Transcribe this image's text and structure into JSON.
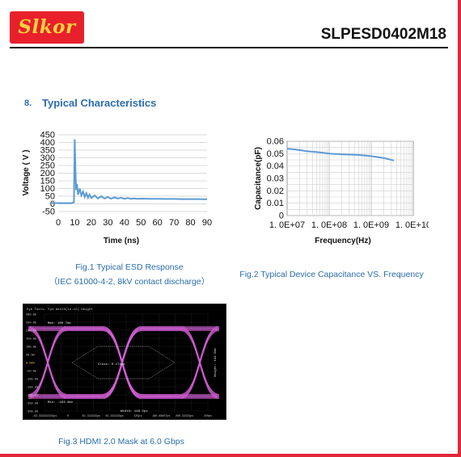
{
  "header": {
    "logo_text": "Slkor",
    "part_number": "SLPESD0402M18"
  },
  "section": {
    "number": "8.",
    "title": "Typical Characteristics"
  },
  "fig1": {
    "caption_line1": "Fig.1 Typical ESD Response",
    "caption_line2": "（IEC 61000-4-2, 8kV contact discharge）",
    "chart_data": {
      "type": "line",
      "xlabel": "Time (ns)",
      "ylabel": "Voltage ( V )",
      "xlim": [
        0,
        90
      ],
      "ylim": [
        -50,
        450
      ],
      "x_ticks": [
        "0",
        "10",
        "20",
        "30",
        "40",
        "50",
        "60",
        "70",
        "80",
        "90"
      ],
      "y_ticks": [
        "450",
        "400",
        "350",
        "300",
        "250",
        "200",
        "150",
        "100",
        "50",
        "0",
        "-50"
      ],
      "grid": true,
      "series": [
        {
          "color": "#5b9bd5",
          "x": [
            -5,
            8,
            9.5,
            10,
            10.3,
            10.8,
            11.3,
            12,
            13,
            14,
            15,
            16,
            17,
            18,
            19,
            20,
            22,
            24,
            26,
            28,
            30,
            32,
            34,
            36,
            38,
            40,
            42,
            44,
            46,
            48,
            50,
            55,
            60,
            65,
            70,
            75,
            80,
            85,
            90
          ],
          "y": [
            5,
            5,
            10,
            420,
            250,
            90,
            130,
            60,
            100,
            55,
            80,
            45,
            70,
            40,
            60,
            38,
            55,
            35,
            50,
            35,
            45,
            33,
            42,
            35,
            40,
            33,
            38,
            33,
            36,
            33,
            34,
            33,
            33,
            32,
            32,
            31,
            31,
            31,
            30
          ]
        }
      ]
    }
  },
  "fig2": {
    "caption": "Fig.2 Typical Device Capacitance VS. Frequency",
    "chart_data": {
      "type": "line",
      "xlabel": "Frequency(Hz)",
      "ylabel": "Capacitance(pF)",
      "log_x": true,
      "xlim": [
        10000000,
        10000000000
      ],
      "ylim": [
        0,
        0.06
      ],
      "x_ticks": [
        "1. 0E+07",
        "1. 0E+08",
        "1. 0E+09",
        "1. 0E+10"
      ],
      "y_ticks": [
        "0.06",
        "0.05",
        "0.04",
        "0.03",
        "0.02",
        "0.01",
        "0"
      ],
      "grid": true,
      "series": [
        {
          "color": "#5b9bd5",
          "x": [
            10000000,
            15000000,
            30000000,
            60000000,
            100000000,
            200000000,
            500000000,
            1000000000,
            2000000000,
            3500000000
          ],
          "y": [
            0.054,
            0.0535,
            0.052,
            0.051,
            0.05,
            0.0495,
            0.049,
            0.048,
            0.0465,
            0.0445
          ]
        }
      ]
    }
  },
  "fig3": {
    "caption": "Fig.3 HDMI 2.0 Mask at 6.0 Gbps",
    "screen_header": "Eye Tools: Eye Width(1e-12) Height",
    "readouts": {
      "top": "Max: 160.7mv",
      "crossing": "Cross: 0.174ps",
      "width": "Width: 149.2ps",
      "right": "Height: 134.5mv",
      "bottom": "Min: -163.4mv"
    },
    "y_ticks": [
      "300.0m",
      "250.0m",
      "200.0m",
      "150.0m",
      "100.0m",
      "50.0m",
      "0.000",
      "-50.0m",
      "-100.0m",
      "-150.0m",
      "-200.0m",
      "-250.0m",
      "-300.0m"
    ],
    "x_ticks": [
      "-83.333333333ps",
      "0",
      "83.333333ps",
      "83.333333ps",
      "125ps",
      "166.66667ps",
      "208.33333ps",
      "250ps"
    ],
    "colors": {
      "trace": "#d35fd6",
      "grid": "#4a4a4a",
      "text": "#c9c9c9"
    }
  },
  "colors": {
    "brand_red": "#e0283a",
    "heading_blue": "#2a6db0",
    "logo_yellow": "#f3d33e",
    "series_blue": "#5b9bd5"
  }
}
